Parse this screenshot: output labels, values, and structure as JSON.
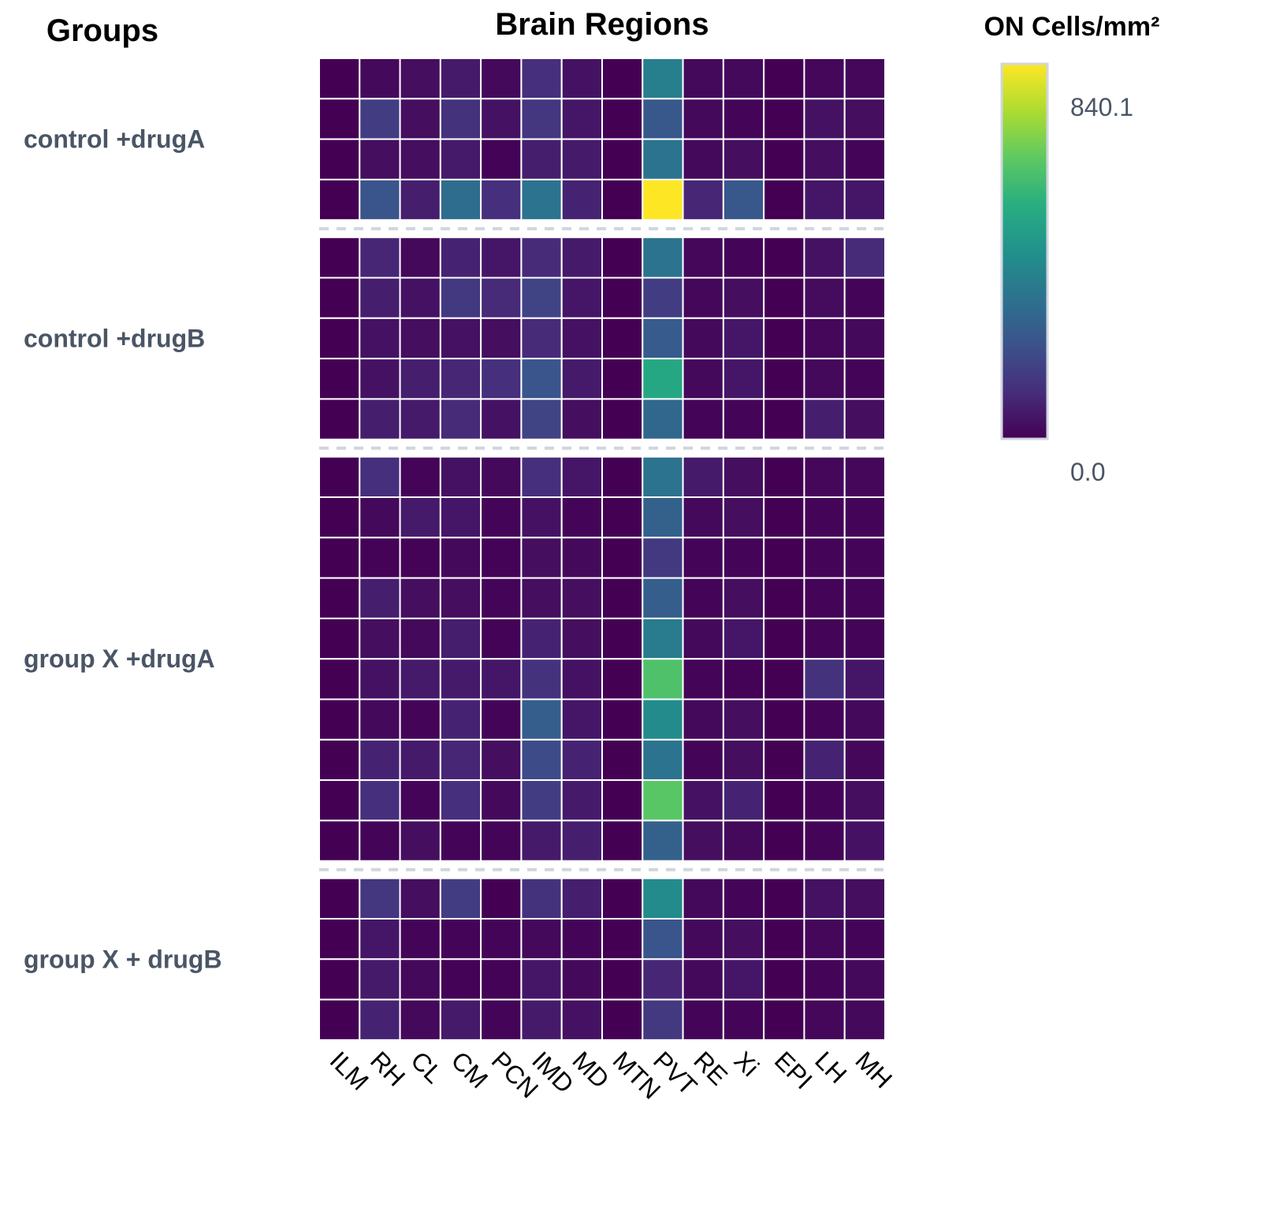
{
  "chart_data": {
    "type": "heatmap",
    "title": "Brain Regions",
    "row_axis_title": "Groups",
    "colorbar": {
      "title": "ON Cells/mm²",
      "min": 0.0,
      "max": 840.1,
      "min_label": "0.0",
      "max_label": "840.1",
      "colormap": "viridis"
    },
    "columns": [
      "ILM",
      "RH",
      "CL",
      "CM",
      "PCN",
      "IMD",
      "MD",
      "MTN",
      "PVT",
      "RE",
      "Xi",
      "EPI",
      "LH",
      "MH"
    ],
    "groups": [
      {
        "name": "control +drugA",
        "rows": [
          [
            0,
            20,
            30,
            60,
            20,
            110,
            40,
            0,
            360,
            20,
            20,
            0,
            15,
            15
          ],
          [
            0,
            150,
            30,
            120,
            40,
            130,
            50,
            0,
            230,
            20,
            10,
            0,
            40,
            30
          ],
          [
            0,
            30,
            30,
            60,
            5,
            70,
            60,
            0,
            320,
            20,
            30,
            0,
            30,
            10
          ],
          [
            0,
            220,
            70,
            300,
            110,
            320,
            80,
            0,
            840.1,
            90,
            230,
            0,
            50,
            50
          ]
        ]
      },
      {
        "name": "control +drugB",
        "rows": [
          [
            0,
            90,
            20,
            80,
            50,
            100,
            60,
            0,
            320,
            15,
            10,
            0,
            40,
            100
          ],
          [
            0,
            70,
            40,
            140,
            100,
            170,
            50,
            0,
            150,
            15,
            30,
            0,
            25,
            10
          ],
          [
            0,
            40,
            30,
            40,
            30,
            100,
            40,
            0,
            240,
            20,
            50,
            0,
            15,
            20
          ],
          [
            0,
            40,
            70,
            90,
            110,
            220,
            60,
            0,
            500,
            20,
            50,
            0,
            20,
            10
          ],
          [
            0,
            70,
            60,
            100,
            40,
            170,
            30,
            0,
            280,
            10,
            10,
            0,
            70,
            30
          ]
        ]
      },
      {
        "name": "group X +drugA",
        "rows": [
          [
            0,
            110,
            10,
            40,
            20,
            110,
            50,
            0,
            320,
            60,
            30,
            0,
            15,
            15
          ],
          [
            0,
            20,
            60,
            50,
            10,
            40,
            10,
            0,
            260,
            20,
            30,
            0,
            10,
            10
          ],
          [
            0,
            5,
            5,
            20,
            5,
            30,
            20,
            0,
            140,
            10,
            10,
            0,
            10,
            10
          ],
          [
            0,
            70,
            30,
            30,
            10,
            30,
            30,
            0,
            250,
            10,
            30,
            0,
            10,
            10
          ],
          [
            0,
            30,
            20,
            70,
            5,
            80,
            30,
            0,
            350,
            20,
            50,
            0,
            10,
            10
          ],
          [
            0,
            40,
            60,
            60,
            50,
            120,
            40,
            0,
            600,
            10,
            5,
            0,
            120,
            50
          ],
          [
            0,
            20,
            10,
            80,
            10,
            250,
            50,
            0,
            400,
            20,
            30,
            0,
            10,
            20
          ],
          [
            0,
            80,
            60,
            90,
            30,
            190,
            80,
            0,
            320,
            10,
            30,
            0,
            80,
            15
          ],
          [
            0,
            110,
            10,
            110,
            20,
            150,
            60,
            0,
            620,
            40,
            80,
            0,
            10,
            30
          ],
          [
            0,
            10,
            30,
            10,
            10,
            60,
            70,
            0,
            260,
            30,
            20,
            0,
            10,
            40
          ]
        ]
      },
      {
        "name": "group X + drugB",
        "rows": [
          [
            0,
            130,
            30,
            150,
            0,
            120,
            70,
            0,
            400,
            20,
            10,
            0,
            40,
            30
          ],
          [
            0,
            50,
            10,
            10,
            10,
            20,
            10,
            0,
            220,
            20,
            30,
            0,
            15,
            10
          ],
          [
            0,
            60,
            20,
            5,
            5,
            50,
            20,
            0,
            90,
            20,
            50,
            0,
            10,
            20
          ],
          [
            0,
            80,
            20,
            60,
            10,
            60,
            40,
            0,
            140,
            10,
            10,
            0,
            15,
            20
          ]
        ]
      }
    ]
  }
}
